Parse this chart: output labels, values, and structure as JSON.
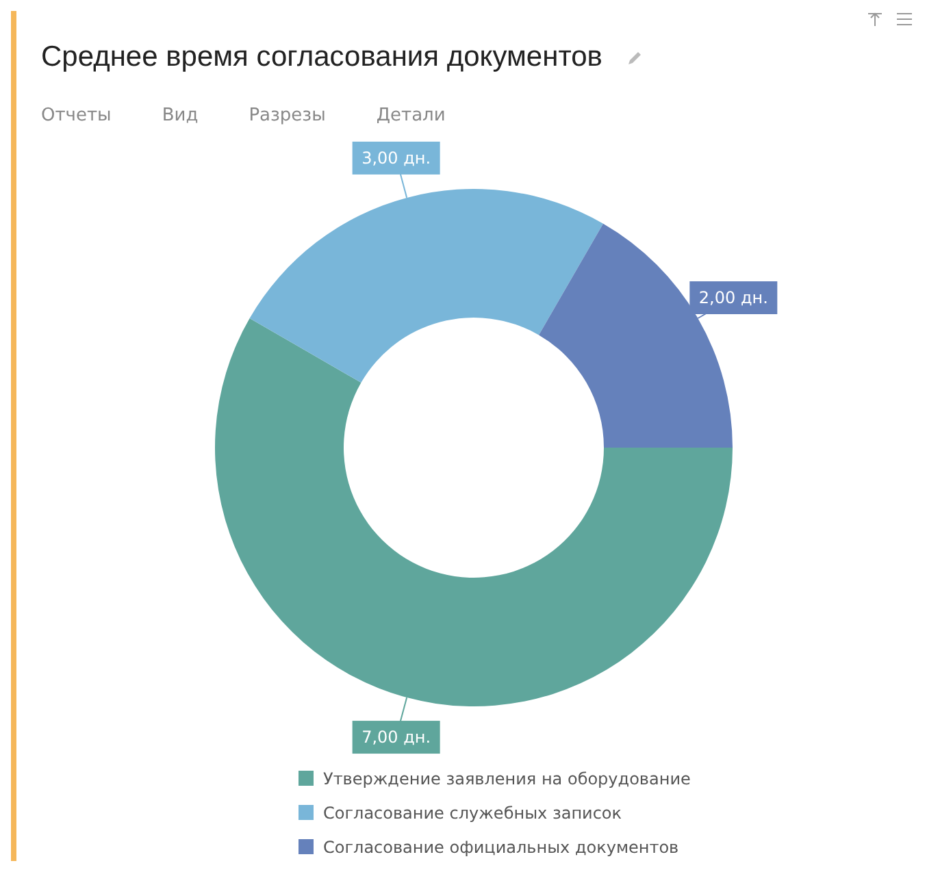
{
  "chart_data": {
    "type": "donut",
    "title": "Среднее время согласования документов",
    "annotations": [
      "Отчеты",
      "Вид",
      "Разрезы",
      "Детали"
    ],
    "categories": [
      "Утверждение заявления на оборудование",
      "Согласование служебных записок",
      "Согласование официальных документов"
    ],
    "values": [
      7,
      3,
      2
    ],
    "colors": [
      "#5fa69c",
      "#79b6d9",
      "#6581bb"
    ],
    "value_labels": [
      "7,00 дн.",
      "3,00 дн.",
      "2,00 дн."
    ],
    "legend": "bottom"
  }
}
